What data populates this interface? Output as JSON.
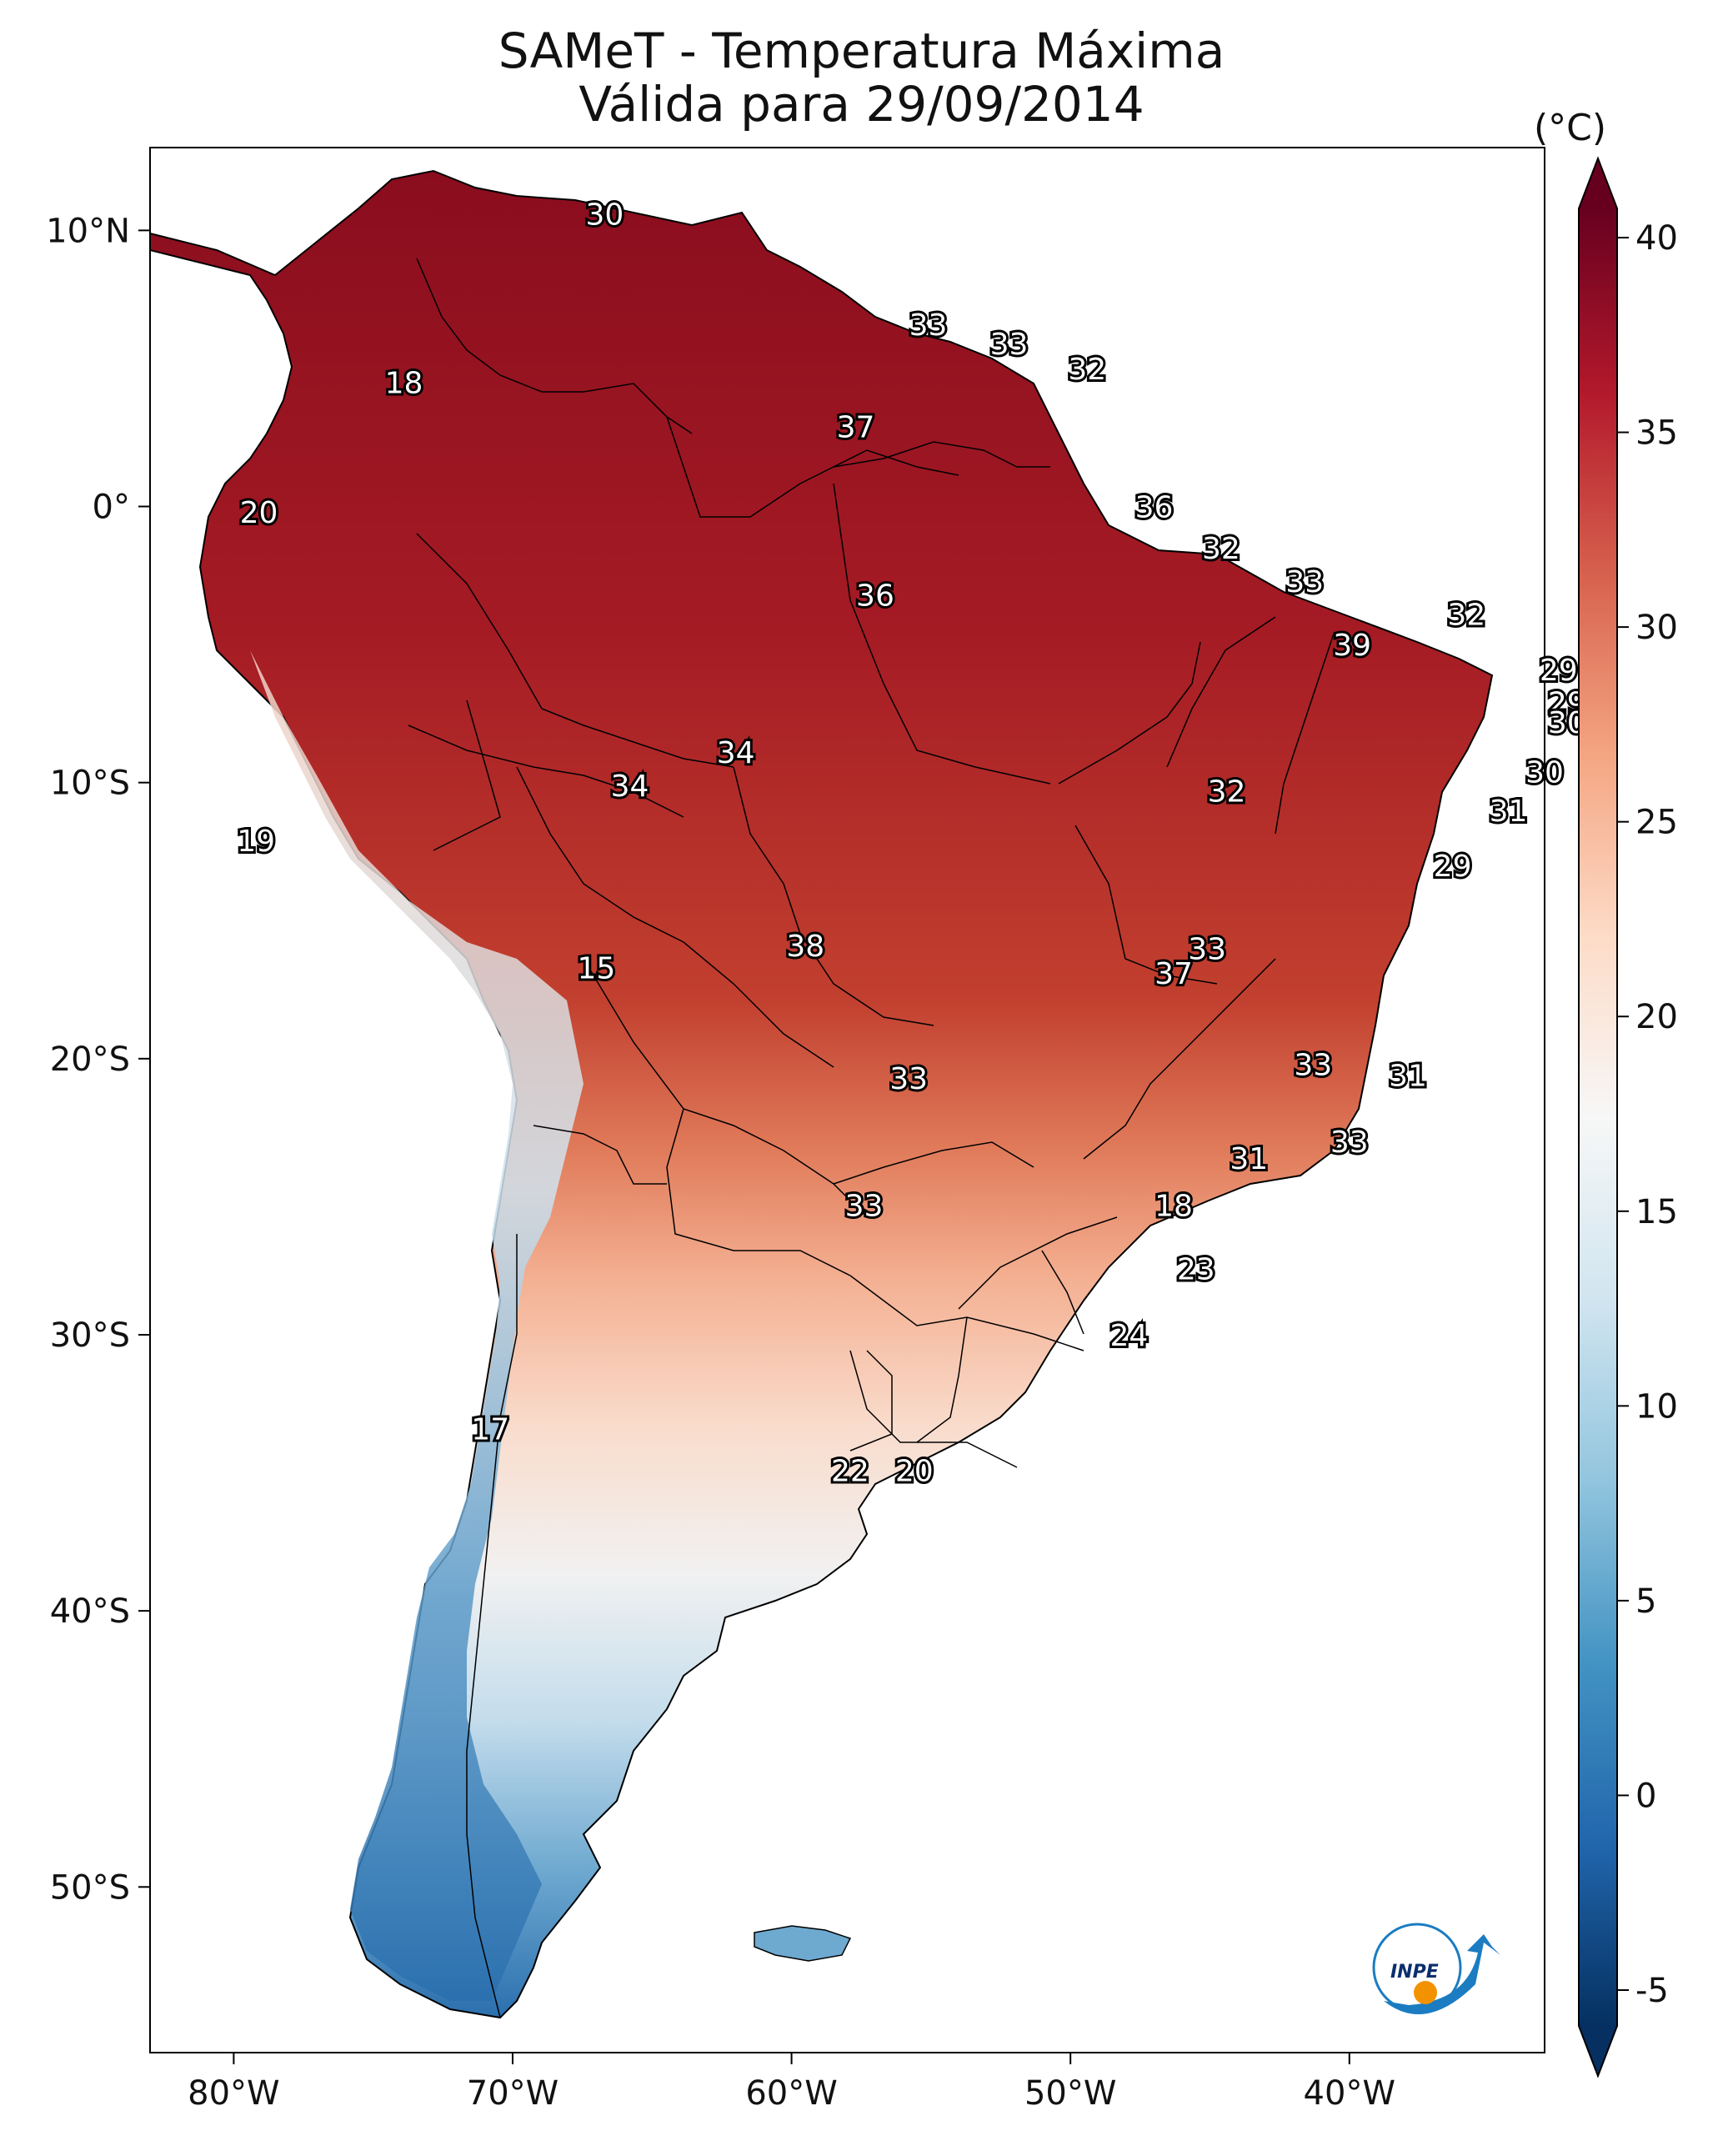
{
  "title": {
    "line1": "SAMeT - Temperatura Máxima",
    "line2": "Válida para 29/09/2014"
  },
  "map": {
    "lon_range": [
      -83,
      -33
    ],
    "lat_range": [
      -56,
      13
    ],
    "lon_ticks": [
      {
        "lon": -80,
        "label": "80°W"
      },
      {
        "lon": -70,
        "label": "70°W"
      },
      {
        "lon": -60,
        "label": "60°W"
      },
      {
        "lon": -50,
        "label": "50°W"
      },
      {
        "lon": -40,
        "label": "40°W"
      }
    ],
    "lat_ticks": [
      {
        "lat": 10,
        "label": "10°N"
      },
      {
        "lat": 0,
        "label": "0°"
      },
      {
        "lat": -10,
        "label": "10°S"
      },
      {
        "lat": -20,
        "label": "20°S"
      },
      {
        "lat": -30,
        "label": "30°S"
      },
      {
        "lat": -40,
        "label": "40°S"
      },
      {
        "lat": -50,
        "label": "50°S"
      }
    ],
    "point_labels": [
      {
        "lon": -66.7,
        "lat": 10.6,
        "value": "30"
      },
      {
        "lon": -55.1,
        "lat": 6.6,
        "value": "33"
      },
      {
        "lon": -52.2,
        "lat": 5.9,
        "value": "33"
      },
      {
        "lon": -49.4,
        "lat": 5.0,
        "value": "32"
      },
      {
        "lon": -73.9,
        "lat": 4.5,
        "value": "18"
      },
      {
        "lon": -57.7,
        "lat": 2.9,
        "value": "37"
      },
      {
        "lon": -79.1,
        "lat": -0.2,
        "value": "20"
      },
      {
        "lon": -47.0,
        "lat": 0.0,
        "value": "36"
      },
      {
        "lon": -44.6,
        "lat": -1.5,
        "value": "32"
      },
      {
        "lon": -41.6,
        "lat": -2.7,
        "value": "33"
      },
      {
        "lon": -57.0,
        "lat": -3.2,
        "value": "36"
      },
      {
        "lon": -35.8,
        "lat": -3.9,
        "value": "32"
      },
      {
        "lon": -39.9,
        "lat": -5.0,
        "value": "39"
      },
      {
        "lon": -32.5,
        "lat": -5.9,
        "value": "29"
      },
      {
        "lon": -32.2,
        "lat": -7.1,
        "value": "29"
      },
      {
        "lon": -32.2,
        "lat": -7.8,
        "value": "30"
      },
      {
        "lon": -62.0,
        "lat": -8.9,
        "value": "34"
      },
      {
        "lon": -33.0,
        "lat": -9.6,
        "value": "30"
      },
      {
        "lon": -65.8,
        "lat": -10.1,
        "value": "34"
      },
      {
        "lon": -44.4,
        "lat": -10.3,
        "value": "32"
      },
      {
        "lon": -34.3,
        "lat": -11.0,
        "value": "31"
      },
      {
        "lon": -79.2,
        "lat": -12.1,
        "value": "19"
      },
      {
        "lon": -36.3,
        "lat": -13.0,
        "value": "29"
      },
      {
        "lon": -59.5,
        "lat": -15.9,
        "value": "38"
      },
      {
        "lon": -45.1,
        "lat": -16.0,
        "value": "33"
      },
      {
        "lon": -46.3,
        "lat": -16.9,
        "value": "37"
      },
      {
        "lon": -67.0,
        "lat": -16.7,
        "value": "15"
      },
      {
        "lon": -41.3,
        "lat": -20.2,
        "value": "33"
      },
      {
        "lon": -37.9,
        "lat": -20.6,
        "value": "31"
      },
      {
        "lon": -55.8,
        "lat": -20.7,
        "value": "33"
      },
      {
        "lon": -40.0,
        "lat": -23.0,
        "value": "33"
      },
      {
        "lon": -43.6,
        "lat": -23.6,
        "value": "31"
      },
      {
        "lon": -57.4,
        "lat": -25.3,
        "value": "33"
      },
      {
        "lon": -46.3,
        "lat": -25.3,
        "value": "18"
      },
      {
        "lon": -45.5,
        "lat": -27.6,
        "value": "23"
      },
      {
        "lon": -47.9,
        "lat": -30.0,
        "value": "24"
      },
      {
        "lon": -70.8,
        "lat": -33.4,
        "value": "17"
      },
      {
        "lon": -57.9,
        "lat": -34.9,
        "value": "22"
      },
      {
        "lon": -55.6,
        "lat": -34.9,
        "value": "20"
      }
    ]
  },
  "colorbar": {
    "unit": "(°C)",
    "range": [
      -5,
      40
    ],
    "ticks": [
      "40",
      "35",
      "30",
      "25",
      "20",
      "15",
      "10",
      "5",
      "0",
      "-5"
    ],
    "colors": [
      "#053061",
      "#2166ac",
      "#4393c3",
      "#92c5de",
      "#d1e5f0",
      "#f7f7f7",
      "#fddbc7",
      "#f4a582",
      "#d6604d",
      "#b2182b",
      "#67001f"
    ]
  },
  "logo": {
    "text": "INPE"
  }
}
